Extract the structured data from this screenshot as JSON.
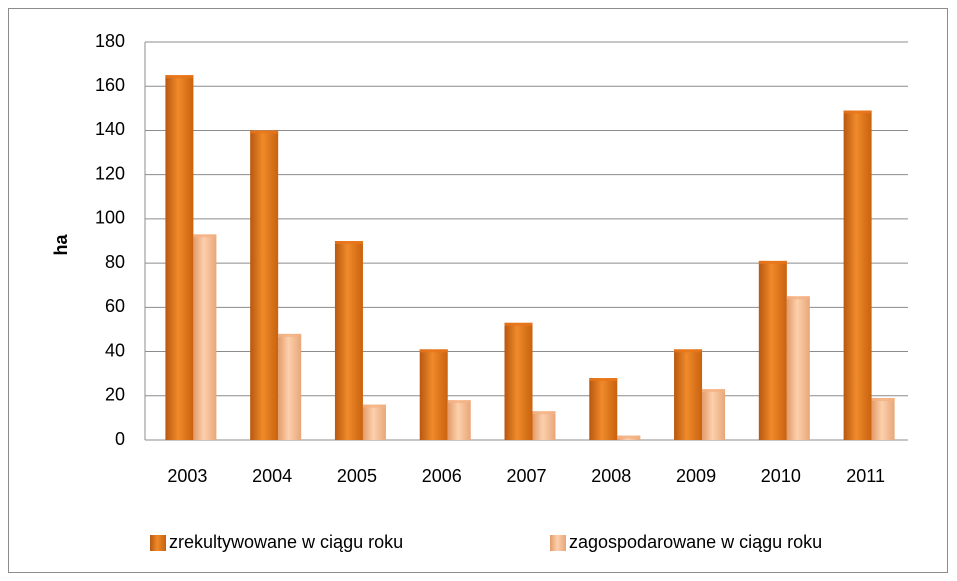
{
  "chart_data": {
    "type": "bar",
    "y_label": "ha",
    "categories": [
      "2003",
      "2004",
      "2005",
      "2006",
      "2007",
      "2008",
      "2009",
      "2010",
      "2011"
    ],
    "series": [
      {
        "name": "zrekultywowane w ciągu roku",
        "color": "#e8751a",
        "values": [
          165,
          140,
          90,
          41,
          53,
          28,
          41,
          81,
          149
        ]
      },
      {
        "name": "zagospodarowane w ciągu roku",
        "color": "#f4b183",
        "values": [
          93,
          48,
          16,
          18,
          13,
          2,
          23,
          65,
          19
        ]
      }
    ],
    "ylim": [
      0,
      180
    ],
    "yticks": [
      0,
      20,
      40,
      60,
      80,
      100,
      120,
      140,
      160,
      180
    ],
    "grid": true,
    "legend": "bottom"
  }
}
